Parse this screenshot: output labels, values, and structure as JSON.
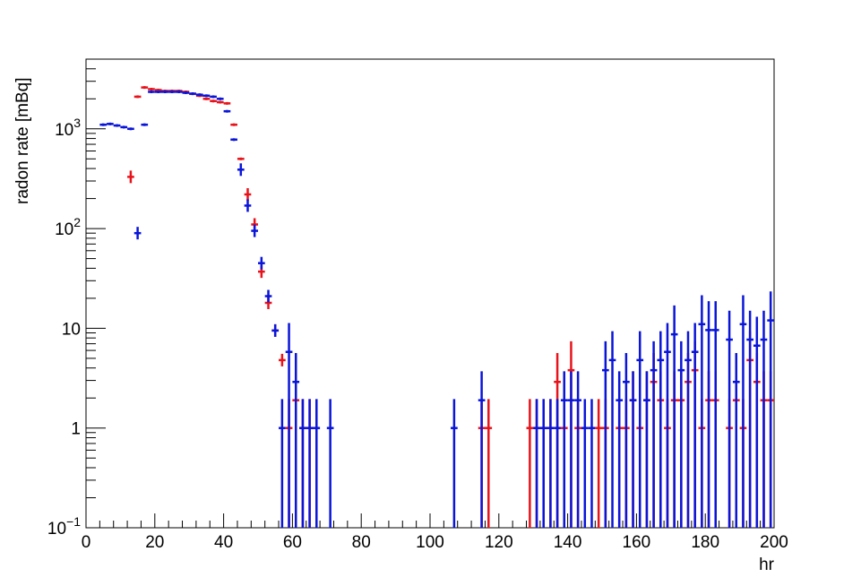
{
  "chart_data": {
    "type": "scatter",
    "title": "",
    "xlabel": "hr",
    "ylabel": "radon rate [mBq]",
    "xlim": [
      0,
      200
    ],
    "ylim": [
      0.1,
      5000
    ],
    "yscale": "log",
    "grid": false,
    "x_ticks": [
      {
        "value": 0,
        "label": "0"
      },
      {
        "value": 20,
        "label": "20"
      },
      {
        "value": 40,
        "label": "40"
      },
      {
        "value": 60,
        "label": "60"
      },
      {
        "value": 80,
        "label": "80"
      },
      {
        "value": 100,
        "label": "100"
      },
      {
        "value": 120,
        "label": "120"
      },
      {
        "value": 140,
        "label": "140"
      },
      {
        "value": 160,
        "label": "160"
      },
      {
        "value": 180,
        "label": "180"
      },
      {
        "value": 200,
        "label": "200"
      }
    ],
    "y_ticks": [
      {
        "value": 0.1,
        "base": "10",
        "exp": "−1"
      },
      {
        "value": 1,
        "base": "1",
        "exp": ""
      },
      {
        "value": 10,
        "base": "10",
        "exp": ""
      },
      {
        "value": 100,
        "base": "10",
        "exp": "2"
      },
      {
        "value": 1000,
        "base": "10",
        "exp": "3"
      }
    ],
    "series": [
      {
        "color": "#e8131a",
        "points": [
          [
            13,
            330,
            0
          ],
          [
            15,
            2100,
            0
          ],
          [
            17,
            2600,
            0
          ],
          [
            19,
            2500,
            0
          ],
          [
            21,
            2450,
            0
          ],
          [
            23,
            2400,
            0
          ],
          [
            25,
            2400,
            0
          ],
          [
            27,
            2400,
            0
          ],
          [
            29,
            2350,
            0
          ],
          [
            31,
            2250,
            0
          ],
          [
            33,
            2150,
            0
          ],
          [
            35,
            2000,
            0
          ],
          [
            37,
            1900,
            0
          ],
          [
            39,
            1850,
            0
          ],
          [
            41,
            1800,
            0
          ],
          [
            43,
            1100,
            0
          ],
          [
            45,
            500,
            0
          ],
          [
            47,
            220,
            0
          ],
          [
            49,
            110,
            0
          ],
          [
            51,
            37,
            0
          ],
          [
            53,
            18,
            0
          ],
          [
            55,
            9.5,
            0
          ],
          [
            57,
            4.8,
            0
          ],
          [
            59,
            1,
            1
          ],
          [
            61,
            1.9,
            1
          ],
          [
            63,
            1,
            1
          ],
          [
            65,
            1,
            1
          ],
          [
            115,
            1,
            1
          ],
          [
            117,
            1,
            1
          ],
          [
            129,
            1,
            1
          ],
          [
            131,
            1,
            1
          ],
          [
            133,
            1,
            1
          ],
          [
            135,
            1,
            1
          ],
          [
            137,
            2.9,
            1
          ],
          [
            139,
            1,
            1
          ],
          [
            141,
            3.8,
            1
          ],
          [
            143,
            1,
            1
          ],
          [
            149,
            1,
            1
          ],
          [
            151,
            1,
            1
          ],
          [
            155,
            1,
            1
          ],
          [
            157,
            1,
            1
          ],
          [
            159,
            1.9,
            1
          ],
          [
            161,
            1,
            1
          ],
          [
            163,
            1.9,
            1
          ],
          [
            165,
            2.9,
            1
          ],
          [
            167,
            1.9,
            1
          ],
          [
            169,
            1,
            1
          ],
          [
            171,
            1.9,
            1
          ],
          [
            173,
            1.9,
            1
          ],
          [
            175,
            2.9,
            1
          ],
          [
            177,
            3.8,
            1
          ],
          [
            179,
            1,
            1
          ],
          [
            181,
            1.9,
            1
          ],
          [
            183,
            1.9,
            1
          ],
          [
            187,
            1,
            1
          ],
          [
            189,
            1.9,
            1
          ],
          [
            191,
            1,
            1
          ],
          [
            193,
            4.8,
            1
          ],
          [
            195,
            2.9,
            1
          ],
          [
            197,
            1.9,
            1
          ],
          [
            199,
            1.9,
            1
          ]
        ]
      },
      {
        "color": "#0a15d8",
        "points": [
          [
            5,
            1100,
            0
          ],
          [
            7,
            1120,
            0
          ],
          [
            9,
            1080,
            0
          ],
          [
            11,
            1040,
            0
          ],
          [
            13,
            1000,
            0
          ],
          [
            15,
            90,
            0
          ],
          [
            17,
            1100,
            0
          ],
          [
            19,
            2350,
            0
          ],
          [
            21,
            2350,
            0
          ],
          [
            23,
            2350,
            0
          ],
          [
            25,
            2350,
            0
          ],
          [
            27,
            2350,
            0
          ],
          [
            29,
            2300,
            0
          ],
          [
            31,
            2250,
            0
          ],
          [
            33,
            2200,
            0
          ],
          [
            35,
            2150,
            0
          ],
          [
            37,
            2100,
            0
          ],
          [
            39,
            2000,
            0
          ],
          [
            41,
            1500,
            0
          ],
          [
            43,
            780,
            0
          ],
          [
            45,
            390,
            0
          ],
          [
            47,
            170,
            0
          ],
          [
            49,
            95,
            0
          ],
          [
            51,
            45,
            0
          ],
          [
            53,
            21,
            0
          ],
          [
            55,
            9.5,
            0
          ],
          [
            57,
            1,
            1
          ],
          [
            59,
            5.8,
            1
          ],
          [
            61,
            2.9,
            1
          ],
          [
            63,
            1,
            1
          ],
          [
            65,
            1,
            1
          ],
          [
            67,
            1,
            1
          ],
          [
            71,
            1,
            1
          ],
          [
            107,
            1,
            1
          ],
          [
            115,
            1.9,
            1
          ],
          [
            131,
            1,
            1
          ],
          [
            133,
            1,
            1
          ],
          [
            135,
            1,
            1
          ],
          [
            137,
            1,
            1
          ],
          [
            139,
            1.9,
            1
          ],
          [
            141,
            1.9,
            1
          ],
          [
            143,
            1.9,
            1
          ],
          [
            145,
            1,
            1
          ],
          [
            147,
            1,
            1
          ],
          [
            151,
            3.8,
            1
          ],
          [
            153,
            4.8,
            1
          ],
          [
            155,
            1.9,
            1
          ],
          [
            157,
            2.9,
            1
          ],
          [
            159,
            1.9,
            1
          ],
          [
            161,
            4.8,
            1
          ],
          [
            163,
            1.9,
            1
          ],
          [
            165,
            3.8,
            1
          ],
          [
            167,
            4.8,
            1
          ],
          [
            169,
            5.8,
            1
          ],
          [
            171,
            8.7,
            1
          ],
          [
            173,
            3.8,
            1
          ],
          [
            175,
            4.8,
            1
          ],
          [
            177,
            5.8,
            1
          ],
          [
            179,
            11,
            1
          ],
          [
            181,
            9.6,
            1
          ],
          [
            183,
            9.6,
            1
          ],
          [
            187,
            7.7,
            1
          ],
          [
            189,
            2.9,
            1
          ],
          [
            191,
            11,
            1
          ],
          [
            193,
            7.7,
            1
          ],
          [
            195,
            6.7,
            1
          ],
          [
            197,
            7.7,
            1
          ],
          [
            199,
            12,
            1
          ]
        ]
      }
    ]
  }
}
